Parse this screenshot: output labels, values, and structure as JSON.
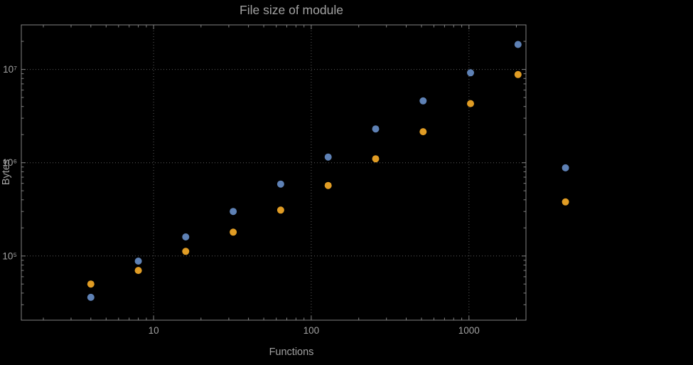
{
  "chart_data": {
    "type": "scatter",
    "title": "File size of module",
    "xlabel": "Functions",
    "ylabel": "Bytes",
    "x_scale": "log",
    "y_scale": "log",
    "x": [
      4,
      8,
      16,
      32,
      64,
      128,
      256,
      512,
      1024,
      2048,
      4096
    ],
    "series": [
      {
        "name": "series-blue",
        "color": "#5e81b5",
        "values": [
          36000,
          88000,
          160000,
          300000,
          590000,
          1150000,
          2300000,
          4600000,
          9200000,
          18500000,
          880000
        ]
      },
      {
        "name": "series-orange",
        "color": "#e09c24",
        "values": [
          50000,
          70000,
          112000,
          180000,
          310000,
          570000,
          1100000,
          2150000,
          4300000,
          8800000,
          380000
        ]
      }
    ],
    "x_ticks": {
      "values": [
        10,
        100,
        1000
      ],
      "labels": [
        "10",
        "100",
        "1000"
      ]
    },
    "y_ticks": {
      "values": [
        100000,
        1000000,
        10000000
      ],
      "labels": [
        "10⁵",
        "10⁶",
        "10⁷"
      ]
    },
    "x_range": [
      1.45,
      2300
    ],
    "y_range": [
      20500,
      30000000
    ],
    "grid": {
      "style": "dotted",
      "color": "#5c5c5c"
    },
    "frame_color": "#828282",
    "background": "#000000",
    "text_color": "#a2a2a2",
    "legend": "none",
    "marker": {
      "shape": "circle",
      "radius": 5
    }
  }
}
